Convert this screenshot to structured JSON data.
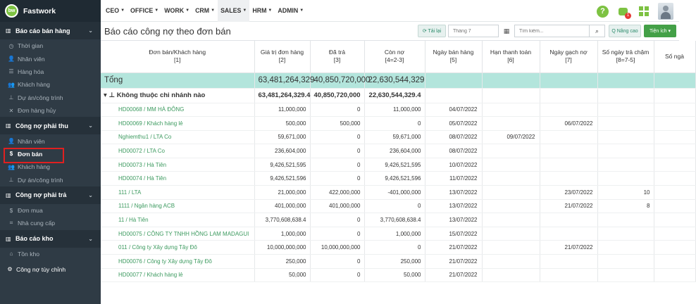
{
  "brand": {
    "logo_text": "bw",
    "name": "Fastwork"
  },
  "sidebar": {
    "sections": [
      {
        "label": "Báo cáo bán hàng",
        "items": [
          {
            "label": "Thời gian",
            "icon": "clock-icon",
            "glyph": "◷"
          },
          {
            "label": "Nhân viên",
            "icon": "user-icon",
            "glyph": "👤"
          },
          {
            "label": "Hàng hóa",
            "icon": "list-icon",
            "glyph": "☰"
          },
          {
            "label": "Khách hàng",
            "icon": "users-icon",
            "glyph": "👥"
          },
          {
            "label": "Dự án/công trình",
            "icon": "sitemap-icon",
            "glyph": "⊥"
          },
          {
            "label": "Đơn hàng hủy",
            "icon": "times-icon",
            "glyph": "✕"
          }
        ]
      },
      {
        "label": "Công nợ phải thu",
        "items": [
          {
            "label": "Nhân viên",
            "icon": "user-icon",
            "glyph": "👤"
          },
          {
            "label": "Đơn bán",
            "icon": "dollar-icon",
            "glyph": "$"
          },
          {
            "label": "Khách hàng",
            "icon": "users-icon",
            "glyph": "👥"
          },
          {
            "label": "Dự án/công trình",
            "icon": "sitemap-icon",
            "glyph": "⊥"
          }
        ]
      },
      {
        "label": "Công nợ phải trả",
        "items": [
          {
            "label": "Đơn mua",
            "icon": "dollar-icon",
            "glyph": "$"
          },
          {
            "label": "Nhà cung cấp",
            "icon": "building-icon",
            "glyph": "⌗"
          }
        ]
      },
      {
        "label": "Báo cáo kho",
        "items": [
          {
            "label": "Tồn kho",
            "icon": "home-icon",
            "glyph": "⌂"
          }
        ]
      }
    ],
    "footer_item": {
      "label": "Công nợ tùy chỉnh",
      "icon": "gear-icon",
      "glyph": "⚙"
    }
  },
  "topnav": {
    "menus": [
      "CEO",
      "OFFICE",
      "WORK",
      "CRM",
      "SALES",
      "HRM",
      "ADMIN"
    ],
    "selected": "SALES",
    "notification_count": "1"
  },
  "toolbar": {
    "title": "Báo cáo công nợ theo đơn bán",
    "reload_label": "⟳ Tải lại",
    "month_placeholder": "Tháng 7",
    "search_placeholder": "Tìm kiếm...",
    "advanced_label": "Q Nâng cao",
    "utility_label": "Tiện ích ▾"
  },
  "table": {
    "columns": [
      {
        "label": "Đơn bán/Khách hàng",
        "sub": "[1]"
      },
      {
        "label": "Giá trị đơn hàng",
        "sub": "[2]"
      },
      {
        "label": "Đã trả",
        "sub": "[3]"
      },
      {
        "label": "Còn nợ",
        "sub": "[4=2-3]"
      },
      {
        "label": "Ngày bán hàng",
        "sub": "[5]"
      },
      {
        "label": "Hạn thanh toán",
        "sub": "[6]"
      },
      {
        "label": "Ngày gạch nợ",
        "sub": "[7]"
      },
      {
        "label": "Số ngày trả chậm",
        "sub": "[8=7-5]"
      },
      {
        "label": "Số ngà",
        "sub": ""
      }
    ],
    "total": {
      "label": "Tổng",
      "value": "63,481,264,329",
      "paid": "40,850,720,000",
      "debt": "22,630,544,329"
    },
    "group": {
      "label": "Không thuộc chi nhánh nào",
      "value": "63,481,264,329.4",
      "paid": "40,850,720,000",
      "debt": "22,630,544,329.4"
    },
    "rows": [
      {
        "name": "HD00068 / MM HÀ ĐÔNG",
        "value": "11,000,000",
        "paid": "0",
        "debt": "11,000,000",
        "sale_date": "04/07/2022",
        "due": "",
        "cleared": "",
        "late": ""
      },
      {
        "name": "HD00069 / Khách hàng lẻ",
        "value": "500,000",
        "paid": "500,000",
        "debt": "0",
        "sale_date": "05/07/2022",
        "due": "",
        "cleared": "06/07/2022",
        "late": ""
      },
      {
        "name": "Nghiemthu1 / LTA Co",
        "value": "59,671,000",
        "paid": "0",
        "debt": "59,671,000",
        "sale_date": "08/07/2022",
        "due": "09/07/2022",
        "cleared": "",
        "late": ""
      },
      {
        "name": "HD00072 / LTA Co",
        "value": "236,604,000",
        "paid": "0",
        "debt": "236,604,000",
        "sale_date": "08/07/2022",
        "due": "",
        "cleared": "",
        "late": ""
      },
      {
        "name": "HD00073 / Hà Tiên",
        "value": "9,426,521,595",
        "paid": "0",
        "debt": "9,426,521,595",
        "sale_date": "10/07/2022",
        "due": "",
        "cleared": "",
        "late": ""
      },
      {
        "name": "HD00074 / Hà Tiên",
        "value": "9,426,521,596",
        "paid": "0",
        "debt": "9,426,521,596",
        "sale_date": "11/07/2022",
        "due": "",
        "cleared": "",
        "late": ""
      },
      {
        "name": "111 / LTA",
        "value": "21,000,000",
        "paid": "422,000,000",
        "debt": "-401,000,000",
        "sale_date": "13/07/2022",
        "due": "",
        "cleared": "23/07/2022",
        "late": "10"
      },
      {
        "name": "1111 / Ngân hàng ACB",
        "value": "401,000,000",
        "paid": "401,000,000",
        "debt": "0",
        "sale_date": "13/07/2022",
        "due": "",
        "cleared": "21/07/2022",
        "late": "8"
      },
      {
        "name": "11 / Hà Tiên",
        "value": "3,770,608,638.4",
        "paid": "0",
        "debt": "3,770,608,638.4",
        "sale_date": "13/07/2022",
        "due": "",
        "cleared": "",
        "late": ""
      },
      {
        "name": "HD00075 / CÔNG TY TNHH HỒNG LAM MADAGUI",
        "value": "1,000,000",
        "paid": "0",
        "debt": "1,000,000",
        "sale_date": "15/07/2022",
        "due": "",
        "cleared": "",
        "late": ""
      },
      {
        "name": "011 / Công ty Xây dựng Tây Đô",
        "value": "10,000,000,000",
        "paid": "10,000,000,000",
        "debt": "0",
        "sale_date": "21/07/2022",
        "due": "",
        "cleared": "21/07/2022",
        "late": ""
      },
      {
        "name": "HD00076 / Công ty Xây dựng Tây Đô",
        "value": "250,000",
        "paid": "0",
        "debt": "250,000",
        "sale_date": "21/07/2022",
        "due": "",
        "cleared": "",
        "late": ""
      },
      {
        "name": "HD00077 / Khách hàng lẻ",
        "value": "50,000",
        "paid": "0",
        "debt": "50,000",
        "sale_date": "21/07/2022",
        "due": "",
        "cleared": "",
        "late": ""
      }
    ]
  }
}
